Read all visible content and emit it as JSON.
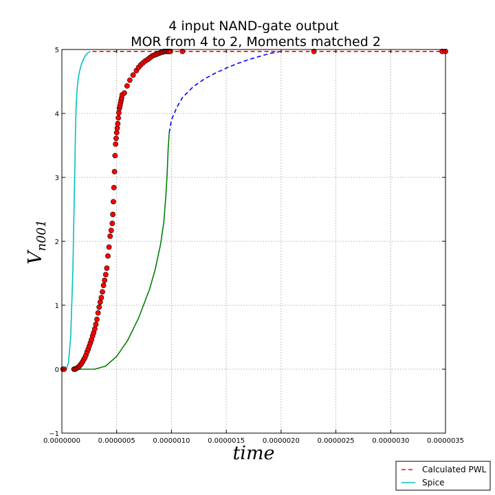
{
  "chart_data": {
    "type": "line",
    "title": [
      "4 input NAND-gate    output",
      "MOR from 4 to 2, Moments matched 2"
    ],
    "xlabel": "time",
    "ylabel_main": "V",
    "ylabel_sub": "n001",
    "xlim": [
      0,
      3.5e-06
    ],
    "ylim": [
      -1,
      5
    ],
    "xticks": [
      0,
      5e-07,
      1e-06,
      1.5e-06,
      2e-06,
      2.5e-06,
      3e-06,
      3.5e-06
    ],
    "xtick_labels": [
      "0.0000000",
      "0.0000005",
      "0.0000010",
      "0.0000015",
      "0.0000020",
      "0.0000025",
      "0.0000030",
      "0.0000035"
    ],
    "yticks": [
      -1,
      0,
      1,
      2,
      3,
      4,
      5
    ],
    "ytick_labels": [
      "−1",
      "0",
      "1",
      "2",
      "3",
      "4",
      "5"
    ],
    "grid": true,
    "legend_position": "bottom-right",
    "series": [
      {
        "name": "Calculated PWL",
        "style": "dashed",
        "color": "#ff0000",
        "x": [
          2.8e-07,
          3.5e-06
        ],
        "y": [
          4.97,
          4.97
        ]
      },
      {
        "name": "Spice",
        "style": "solid",
        "color": "#00bfbf",
        "x": [
          0,
          4e-08,
          6e-08,
          8e-08,
          1e-07,
          1.1e-07,
          1.2e-07,
          1.25e-07,
          1.3e-07,
          1.35e-07,
          1.4e-07,
          1.5e-07,
          1.6e-07,
          1.8e-07,
          2e-07,
          2.2e-07,
          2.4e-07,
          2.6e-07
        ],
        "y": [
          0,
          0,
          0.1,
          0.5,
          1.5,
          2.4,
          3.3,
          3.8,
          4.1,
          4.25,
          4.4,
          4.55,
          4.65,
          4.78,
          4.86,
          4.92,
          4.95,
          4.97
        ]
      },
      {
        "style": "dashed",
        "color": "#0000ff",
        "x": [
          9.8e-07,
          1e-06,
          1.05e-06,
          1.1e-06,
          1.2e-06,
          1.3e-06,
          1.4e-06,
          1.5e-06,
          1.6e-06,
          1.7e-06,
          1.8e-06,
          1.9e-06,
          2e-06
        ],
        "y": [
          3.7,
          3.9,
          4.1,
          4.25,
          4.42,
          4.54,
          4.63,
          4.71,
          4.78,
          4.84,
          4.89,
          4.94,
          4.97
        ]
      },
      {
        "style": "solid",
        "color": "#008000",
        "x": [
          1e-07,
          2e-07,
          3e-07,
          4e-07,
          5e-07,
          6e-07,
          7e-07,
          8e-07,
          8.5e-07,
          9e-07,
          9.3e-07,
          9.5e-07,
          9.6e-07,
          9.7e-07,
          9.8e-07
        ],
        "y": [
          0,
          0,
          0,
          0.05,
          0.2,
          0.45,
          0.8,
          1.25,
          1.55,
          1.95,
          2.3,
          2.75,
          3.05,
          3.45,
          3.7
        ]
      },
      {
        "style": "markers",
        "color": "#ff0000",
        "x": [
          1e-08,
          2e-08,
          1.1e-07,
          1.2e-07,
          1.3e-07,
          1.4e-07,
          1.5e-07,
          1.6e-07,
          1.7e-07,
          1.8e-07,
          1.9e-07,
          2e-07,
          2.1e-07,
          2.2e-07,
          2.3e-07,
          2.4e-07,
          2.5e-07,
          2.6e-07,
          2.7e-07,
          2.8e-07,
          2.9e-07,
          3e-07,
          3.1e-07,
          3.2e-07,
          3.3e-07,
          3.4e-07,
          3.5e-07,
          3.6e-07,
          3.7e-07,
          3.8e-07,
          3.9e-07,
          4e-07,
          4.1e-07,
          4.2e-07,
          4.3e-07,
          4.4e-07,
          4.5e-07,
          4.6e-07,
          4.65e-07,
          4.7e-07,
          4.75e-07,
          4.8e-07,
          4.85e-07,
          4.9e-07,
          4.95e-07,
          5e-07,
          5.05e-07,
          5.1e-07,
          5.15e-07,
          5.2e-07,
          5.25e-07,
          5.3e-07,
          5.35e-07,
          5.4e-07,
          5.45e-07,
          5.5e-07,
          5.7e-07,
          5.95e-07,
          6.2e-07,
          6.5e-07,
          6.8e-07,
          7e-07,
          7.2e-07,
          7.4e-07,
          7.6e-07,
          7.8e-07,
          7.95e-07,
          8.1e-07,
          8.25e-07,
          8.4e-07,
          8.55e-07,
          8.7e-07,
          8.85e-07,
          9e-07,
          9.1e-07,
          9.2e-07,
          9.3e-07,
          9.4e-07,
          9.5e-07,
          9.6e-07,
          9.7e-07,
          9.8e-07,
          9.9e-07,
          1.1e-06,
          2.3e-06,
          3.47e-06,
          3.5e-06
        ],
        "y": [
          0,
          0,
          0,
          0,
          0.01,
          0.02,
          0.03,
          0.05,
          0.07,
          0.09,
          0.12,
          0.15,
          0.18,
          0.22,
          0.27,
          0.31,
          0.36,
          0.41,
          0.46,
          0.52,
          0.57,
          0.63,
          0.7,
          0.78,
          0.88,
          0.97,
          1.05,
          1.12,
          1.21,
          1.31,
          1.39,
          1.48,
          1.58,
          1.77,
          1.91,
          2.08,
          2.17,
          2.28,
          2.42,
          2.62,
          2.84,
          3.09,
          3.34,
          3.52,
          3.61,
          3.7,
          3.77,
          3.84,
          3.93,
          4.01,
          4.08,
          4.12,
          4.16,
          4.2,
          4.24,
          4.29,
          4.32,
          4.43,
          4.52,
          4.6,
          4.67,
          4.72,
          4.76,
          4.79,
          4.82,
          4.84,
          4.86,
          4.88,
          4.9,
          4.91,
          4.92,
          4.93,
          4.94,
          4.95,
          4.96,
          4.96,
          4.97,
          4.97,
          4.97,
          4.97,
          4.97,
          4.97,
          4.97,
          4.97,
          4.97,
          4.97,
          4.97
        ]
      }
    ]
  }
}
